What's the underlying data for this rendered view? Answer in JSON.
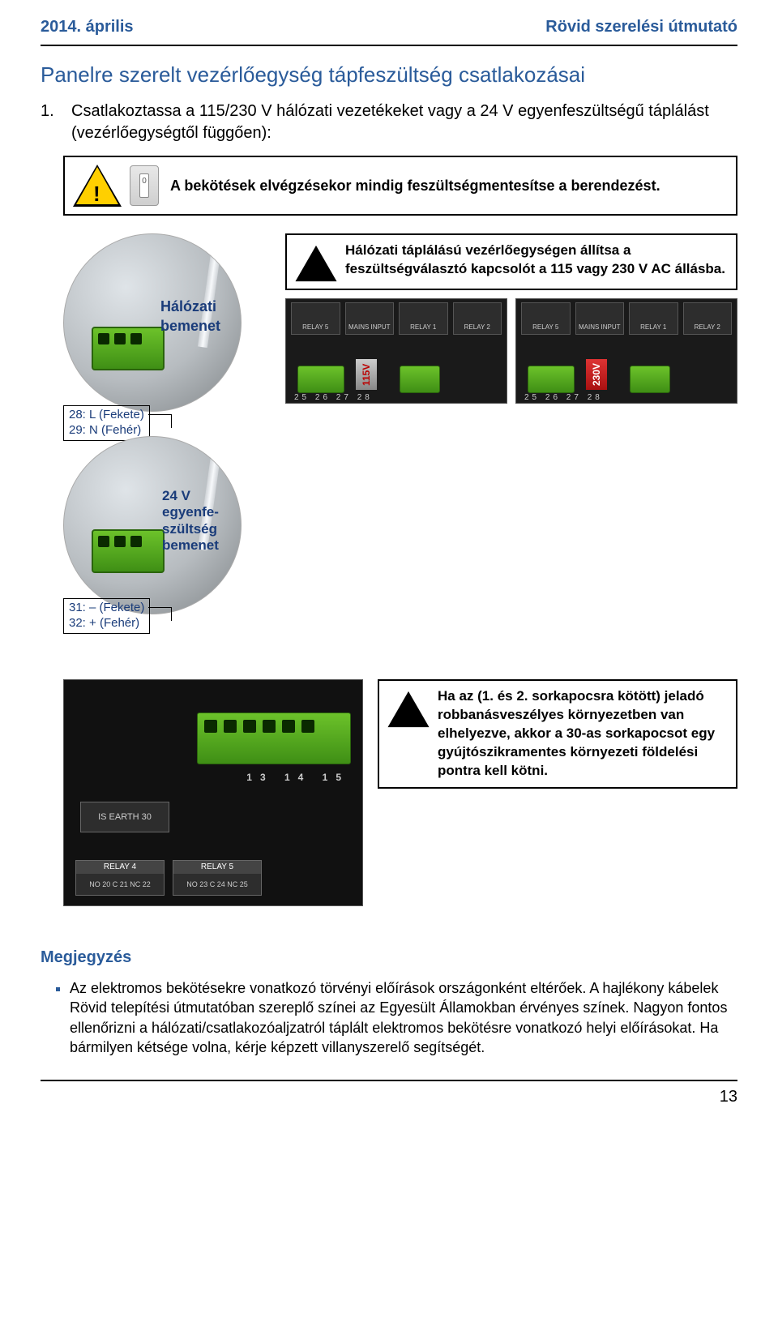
{
  "header": {
    "left": "2014. április",
    "right": "Rövid szerelési útmutató"
  },
  "title": "Panelre szerelt vezérlőegység tápfeszültség csatlakozásai",
  "step1": {
    "num": "1.",
    "text": "Csatlakoztassa a 115/230 V hálózati vezetékeket vagy a 24 V egyenfeszültségű táplálást (vezérlőegységtől függően):"
  },
  "warn_main": "A bekötések elvégzésekor mindig feszültségmentesítse a berendezést.",
  "mains": {
    "input_label": "Hálózati\nbemenet",
    "pins": "28: L (Fekete)\n29: N (Fehér)",
    "voltage_warn": "Hálózati táplálású vezérlőegységen állítsa a feszültségválasztó kapcsolót a 115 vagy 230 V AC állásba.",
    "panel_a_tag": "115V",
    "panel_b_tag": "230V"
  },
  "dc": {
    "input_label": "24 V\negyenfe-\nszültség\nbemenet",
    "pins": "31: – (Fekete)\n32: + (Fehér)"
  },
  "device": {
    "nums": "13 14 15",
    "earth": "IS EARTH  30",
    "relay4": "RELAY 4",
    "relay5": "RELAY 5",
    "r4pins": "NO 20  C 21  NC 22",
    "r5pins": "NO 23  C 24  NC 25"
  },
  "bottom_warn": "Ha az (1. és 2. sorkapocsra kötött) jeladó robbanásveszélyes környezetben van elhelyezve, akkor a 30-as sorkapocsot egy gyújtószikramentes környezeti földelési pontra kell kötni.",
  "note": {
    "heading": "Megjegyzés",
    "item": "Az elektromos bekötésekre vonatkozó törvényi előírások országonként eltérőek. A hajlékony kábelek Rövid telepítési útmutatóban szereplő színei az Egyesült Államokban érvényes színek. Nagyon fontos ellenőrizni a hálózati/csatlakozóaljzatról táplált elektromos bekötésre vonatkozó helyi előírásokat. Ha bármilyen kétsége volna, kérje képzett villanyszerelő segítségét."
  },
  "pagenum": "13",
  "colors": {
    "brand": "#2a5b9a",
    "warn_triangle": "#ffcf00",
    "terminal_green": "#6cc22a"
  }
}
